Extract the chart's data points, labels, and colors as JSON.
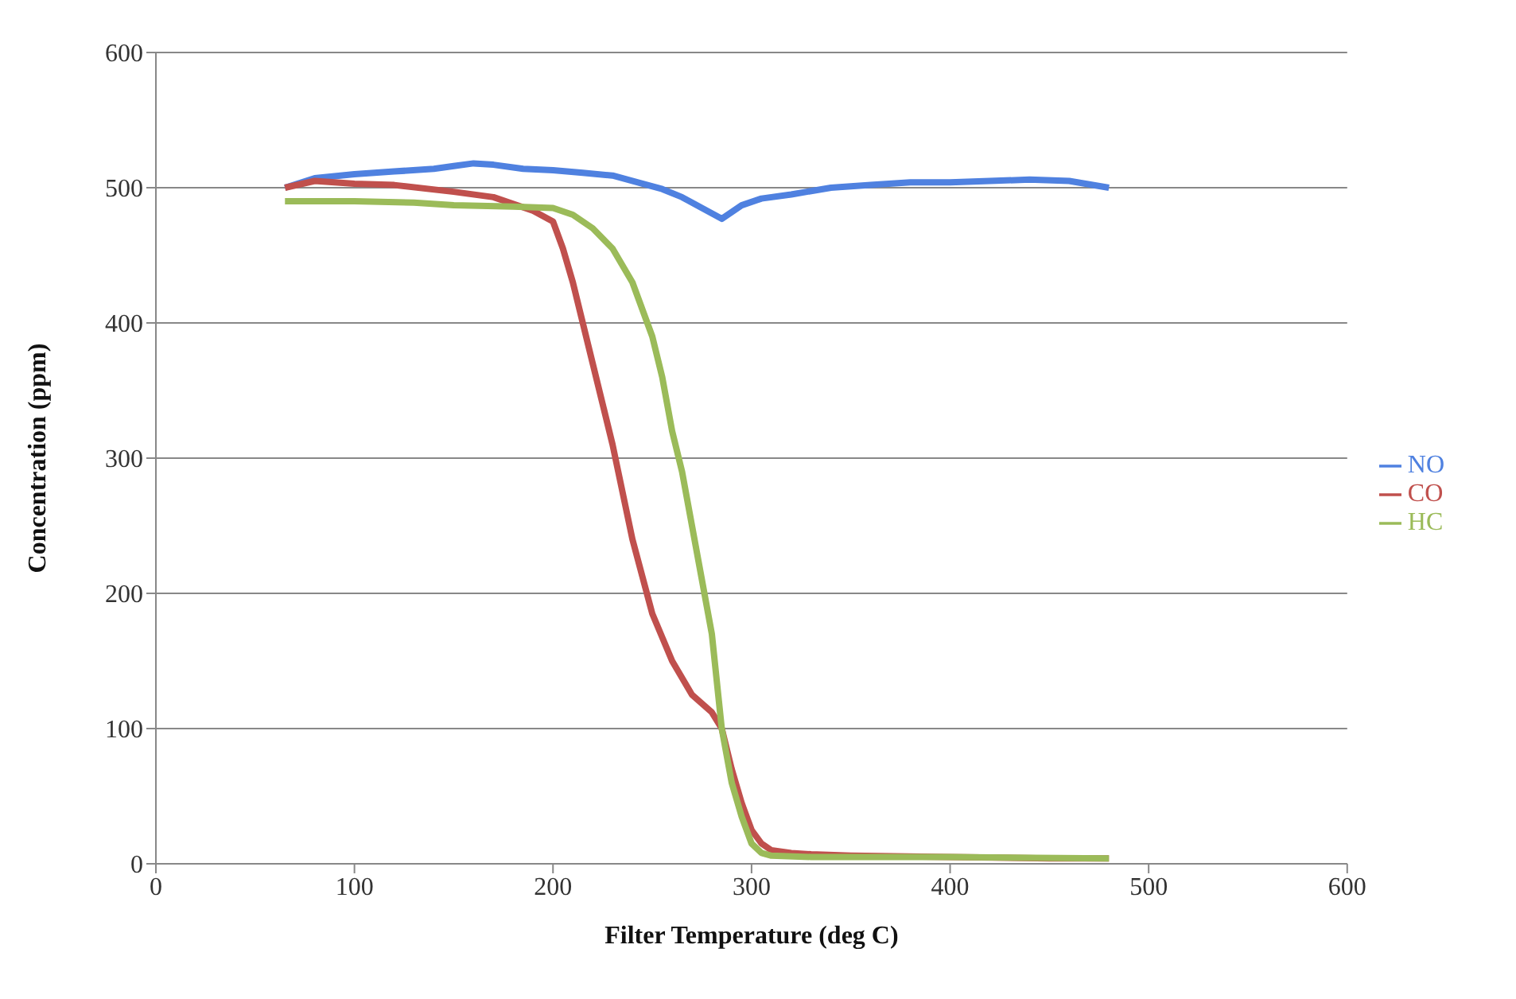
{
  "chart_data": {
    "type": "line",
    "xlabel": "Filter Temperature (deg C)",
    "ylabel": "Concentration (ppm)",
    "xlim": [
      0,
      600
    ],
    "xticks": [
      0,
      100,
      200,
      300,
      400,
      500,
      600
    ],
    "ylim": [
      0,
      600
    ],
    "yticks": [
      0,
      100,
      200,
      300,
      400,
      500,
      600
    ],
    "grid": "y",
    "legend": "right",
    "marker": "none",
    "series": [
      {
        "name": "NO",
        "color": "#4f81e0",
        "x": [
          65,
          80,
          100,
          120,
          140,
          150,
          160,
          170,
          185,
          200,
          215,
          230,
          245,
          255,
          265,
          275,
          285,
          295,
          305,
          320,
          340,
          360,
          380,
          400,
          420,
          440,
          460,
          480
        ],
        "values": [
          500,
          507,
          510,
          512,
          514,
          516,
          518,
          517,
          514,
          513,
          511,
          509,
          503,
          499,
          493,
          485,
          477,
          487,
          492,
          495,
          500,
          502,
          504,
          504,
          505,
          506,
          505,
          500
        ]
      },
      {
        "name": "CO",
        "color": "#c0504d",
        "x": [
          65,
          80,
          100,
          120,
          150,
          170,
          190,
          200,
          205,
          210,
          220,
          230,
          240,
          250,
          260,
          270,
          280,
          285,
          290,
          295,
          300,
          305,
          310,
          320,
          330,
          350,
          400,
          450,
          480
        ],
        "values": [
          500,
          505,
          503,
          502,
          497,
          493,
          483,
          475,
          455,
          430,
          370,
          310,
          240,
          185,
          150,
          125,
          112,
          100,
          70,
          45,
          25,
          15,
          10,
          8,
          7,
          6,
          5,
          4,
          4
        ]
      },
      {
        "name": "HC",
        "color": "#9bbb59",
        "x": [
          65,
          80,
          100,
          130,
          150,
          180,
          200,
          210,
          220,
          230,
          240,
          250,
          255,
          260,
          265,
          270,
          275,
          280,
          285,
          290,
          295,
          300,
          305,
          310,
          330,
          400,
          480
        ],
        "values": [
          490,
          490,
          490,
          489,
          487,
          486,
          485,
          480,
          470,
          455,
          430,
          390,
          360,
          320,
          290,
          250,
          210,
          170,
          100,
          60,
          35,
          15,
          8,
          6,
          5,
          5,
          4
        ]
      }
    ]
  }
}
